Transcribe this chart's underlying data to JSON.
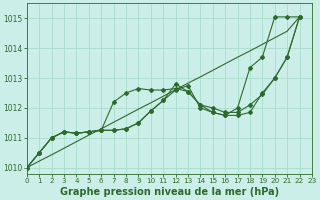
{
  "title": "Graphe pression niveau de la mer (hPa)",
  "bg_color": "#cceee8",
  "grid_color": "#aaddcc",
  "line_color": "#2d6a2d",
  "series": [
    [
      1010.0,
      1010.5,
      1011.0,
      1011.2,
      1011.15,
      1011.2,
      1011.25,
      1011.25,
      1011.3,
      1011.5,
      1011.9,
      1012.25,
      1012.6,
      1012.75,
      1012.0,
      1011.85,
      1011.75,
      1011.75,
      1011.85,
      1012.5,
      1013.0,
      1013.7,
      1015.05
    ],
    [
      1010.0,
      1010.5,
      1011.0,
      1011.2,
      1011.15,
      1011.2,
      1011.25,
      1012.2,
      1012.5,
      1012.65,
      1012.6,
      1012.6,
      1012.65,
      1012.55,
      1012.1,
      1012.0,
      1011.85,
      1011.85,
      1012.1,
      1012.45,
      1013.0,
      1013.7,
      1015.05
    ],
    [
      1010.0,
      1010.5,
      1011.0,
      1011.2,
      1011.15,
      1011.2,
      1011.25,
      1011.25,
      1011.3,
      1011.5,
      1011.9,
      1012.25,
      1012.8,
      1012.55,
      1012.1,
      1011.85,
      1011.75,
      1012.0,
      1013.35,
      1013.7,
      1015.05,
      1015.05,
      1015.05
    ]
  ],
  "line_straight": [
    1010.0,
    1010.22,
    1010.43,
    1010.65,
    1010.87,
    1011.09,
    1011.3,
    1011.52,
    1011.74,
    1011.96,
    1012.17,
    1012.39,
    1012.61,
    1012.83,
    1013.04,
    1013.26,
    1013.48,
    1013.7,
    1013.91,
    1014.13,
    1014.35,
    1014.57,
    1015.05
  ],
  "xlim": [
    0,
    23
  ],
  "ylim": [
    1009.8,
    1015.5
  ],
  "yticks": [
    1010,
    1011,
    1012,
    1013,
    1014,
    1015
  ],
  "xticks": [
    0,
    1,
    2,
    3,
    4,
    5,
    6,
    7,
    8,
    9,
    10,
    11,
    12,
    13,
    14,
    15,
    16,
    17,
    18,
    19,
    20,
    21,
    22,
    23
  ]
}
